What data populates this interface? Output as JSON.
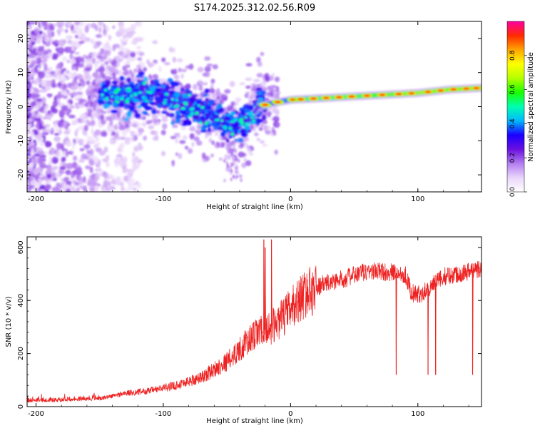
{
  "figure": {
    "title": "S174.2025.312.02.56.R09"
  },
  "colors": {
    "snr_line": "#ee2222",
    "axis": "#000000",
    "background": "#ffffff"
  },
  "chart_data": [
    {
      "id": "spectrogram",
      "type": "heatmap",
      "title": "",
      "xlabel": "Height of straight line (km)",
      "ylabel": "Frequency (Hz)",
      "xlim": [
        -207,
        150
      ],
      "ylim": [
        -25,
        25
      ],
      "xticks": [
        -200,
        -100,
        0,
        100
      ],
      "xtick_labels": [
        "-200",
        "-100",
        "0",
        "100"
      ],
      "yticks": [
        20,
        10,
        0,
        -10,
        -20
      ],
      "ytick_labels": [
        "20",
        "10",
        "0",
        "-10",
        "-20"
      ],
      "ridge": {
        "description_points_x_km": [
          -150,
          -120,
          -100,
          -80,
          -60,
          -45,
          -35,
          -25,
          -15,
          0,
          25,
          50,
          75,
          100,
          125,
          150
        ],
        "frequency_hz": [
          3.5,
          3.5,
          3,
          0,
          -2.5,
          -6,
          -5,
          0,
          1,
          2,
          2.5,
          3,
          3.5,
          4,
          5,
          5.5
        ]
      },
      "colorbar": {
        "label": "Normalized spectral amplitude",
        "range": [
          0,
          1
        ],
        "ticks": [
          0.0,
          0.2,
          0.4,
          0.6,
          0.8
        ],
        "tick_labels": [
          "0.0",
          "0.2",
          "0.4",
          "0.6",
          "0.8"
        ],
        "colormap": [
          "#ffffff",
          "#e9d5fa",
          "#b37df0",
          "#6a10e0",
          "#1a00ff",
          "#00b8ff",
          "#00ffb0",
          "#19ff00",
          "#b4ff00",
          "#ffff00",
          "#ffa500",
          "#ff2a00",
          "#ff00a0"
        ]
      }
    },
    {
      "id": "snr",
      "type": "line",
      "title": "",
      "xlabel": "Height of straight line (km)",
      "ylabel": "SNR (10 * v/v)",
      "xlim": [
        -207,
        150
      ],
      "ylim": [
        0,
        640
      ],
      "xticks": [
        -200,
        -100,
        0,
        100
      ],
      "xtick_labels": [
        "-200",
        "-100",
        "0",
        "100"
      ],
      "yticks": [
        0,
        200,
        400,
        600
      ],
      "ytick_labels": [
        "0",
        "200",
        "400",
        "600"
      ],
      "trend": {
        "x": [
          -207,
          -180,
          -150,
          -130,
          -110,
          -90,
          -70,
          -50,
          -35,
          -25,
          -15,
          -5,
          0,
          10,
          25,
          40,
          50,
          60,
          70,
          80,
          90,
          95,
          100,
          110,
          120,
          130,
          140,
          150
        ],
        "y": [
          20,
          22,
          30,
          50,
          60,
          80,
          110,
          170,
          240,
          280,
          300,
          340,
          370,
          420,
          460,
          480,
          495,
          510,
          510,
          505,
          500,
          430,
          420,
          450,
          490,
          500,
          510,
          520
        ]
      },
      "spikes": [
        {
          "x": -21,
          "y": 630
        },
        {
          "x": -20,
          "y": 600
        },
        {
          "x": -15,
          "y": 630
        }
      ],
      "dips": [
        {
          "x": 83,
          "y": 120
        },
        {
          "x": 108,
          "y": 120
        },
        {
          "x": 114,
          "y": 120
        },
        {
          "x": 143,
          "y": 120
        }
      ],
      "series": [
        {
          "name": "SNR",
          "color": "#ee2222"
        }
      ]
    }
  ]
}
